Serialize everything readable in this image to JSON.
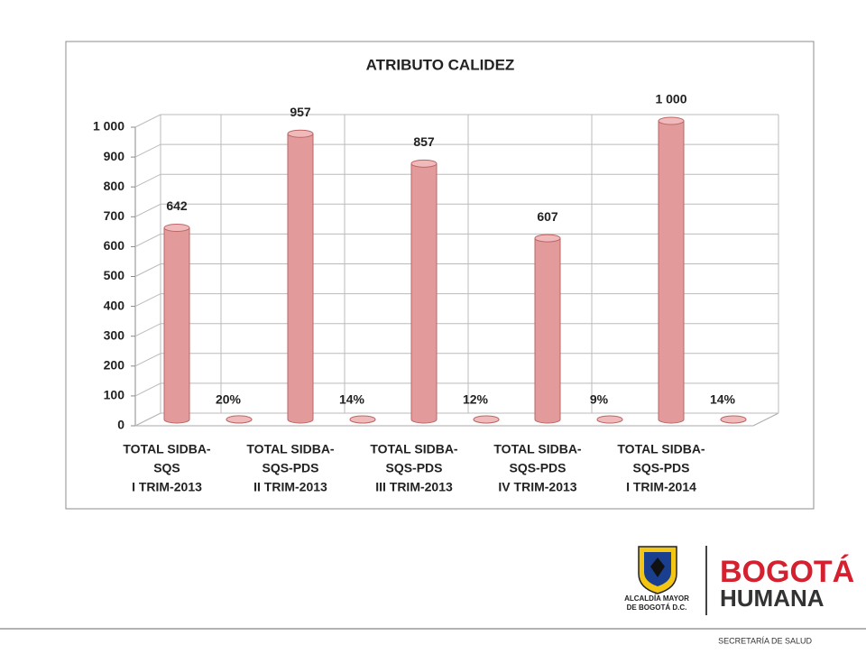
{
  "chart_data": {
    "type": "bar3d",
    "title": "ATRIBUTO CALIDEZ",
    "categories": [
      [
        "TOTAL SIDBA-",
        "SQS",
        "I TRIM-2013"
      ],
      [
        "TOTAL SIDBA-",
        "SQS-PDS",
        "II TRIM-2013"
      ],
      [
        "TOTAL SIDBA-",
        "SQS-PDS",
        "III TRIM-2013"
      ],
      [
        "TOTAL SIDBA-",
        "SQS-PDS",
        "IV TRIM-2013"
      ],
      [
        "TOTAL SIDBA-",
        "SQS-PDS",
        "I TRIM-2014"
      ]
    ],
    "series": [
      {
        "color": "#e39a9a",
        "values": [
          642,
          957,
          857,
          607,
          1000
        ],
        "value_labels": [
          "642",
          "957",
          "857",
          "607",
          "1 000"
        ]
      },
      {
        "color": "#c86a6a",
        "values": [
          0.2,
          0.14,
          0.12,
          0.09,
          0.14
        ],
        "value_labels": [
          "20%",
          "14%",
          "12%",
          "9%",
          "14%"
        ]
      }
    ],
    "ylim": [
      0,
      1000
    ],
    "yticks": [
      0,
      100,
      200,
      300,
      400,
      500,
      600,
      700,
      800,
      900,
      {
        "value": 1000,
        "label": "1 000"
      }
    ],
    "grid": true
  },
  "logo": {
    "left": [
      "ALCALDÍA MAYOR",
      "DE BOGOTÁ D.C."
    ],
    "brand": [
      "BOGOTÁ",
      "HUMANA"
    ]
  },
  "footer": "SECRETARÍA DE SALUD"
}
